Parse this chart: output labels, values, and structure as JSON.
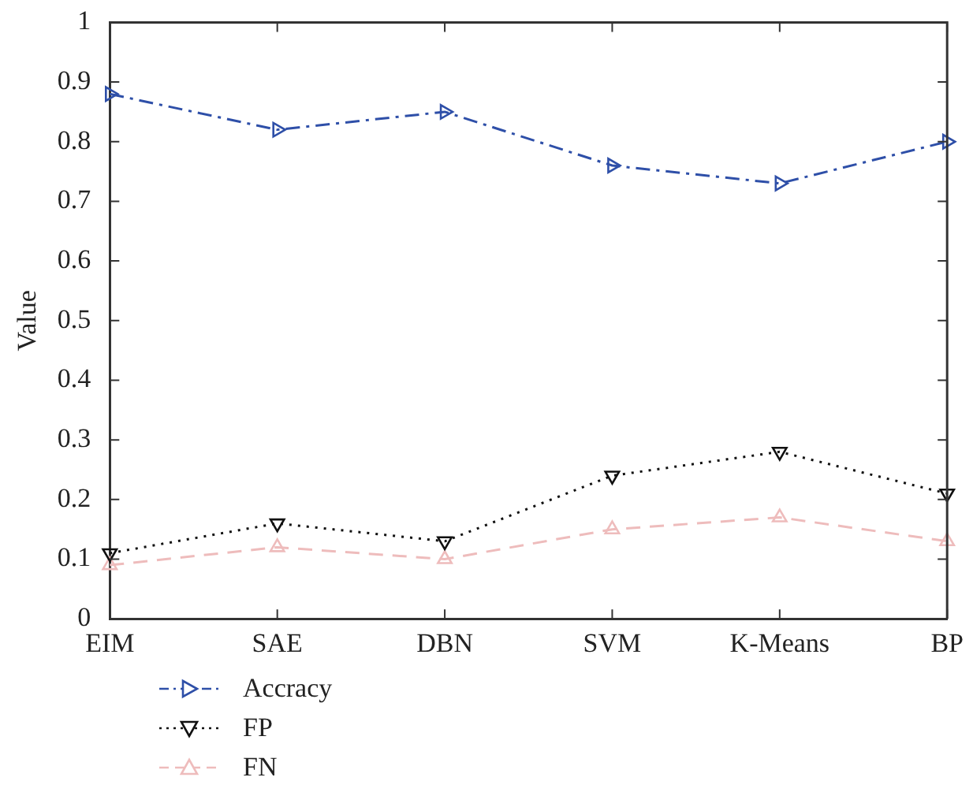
{
  "chart_data": {
    "type": "line",
    "ylabel": "Value",
    "categories": [
      "EIM",
      "SAE",
      "DBN",
      "SVM",
      "K-Means",
      "BP"
    ],
    "series": [
      {
        "name": "Accracy",
        "color": "#2e4fa8",
        "values": [
          0.88,
          0.82,
          0.85,
          0.76,
          0.73,
          0.8
        ],
        "marker": "triangle-right",
        "line_style": "dashdot"
      },
      {
        "name": "FP",
        "color": "#111111",
        "values": [
          0.11,
          0.16,
          0.13,
          0.24,
          0.28,
          0.21
        ],
        "marker": "triangle-down",
        "line_style": "dotted"
      },
      {
        "name": "FN",
        "color": "#eebcbc",
        "values": [
          0.09,
          0.12,
          0.1,
          0.15,
          0.17,
          0.13
        ],
        "marker": "triangle",
        "line_style": "dashed"
      }
    ],
    "ylim": [
      0,
      1
    ],
    "yticks": [
      0,
      0.1,
      0.2,
      0.3,
      0.4,
      0.5,
      0.6,
      0.7,
      0.8,
      0.9,
      1
    ],
    "grid": false,
    "legend": "bottom left"
  }
}
